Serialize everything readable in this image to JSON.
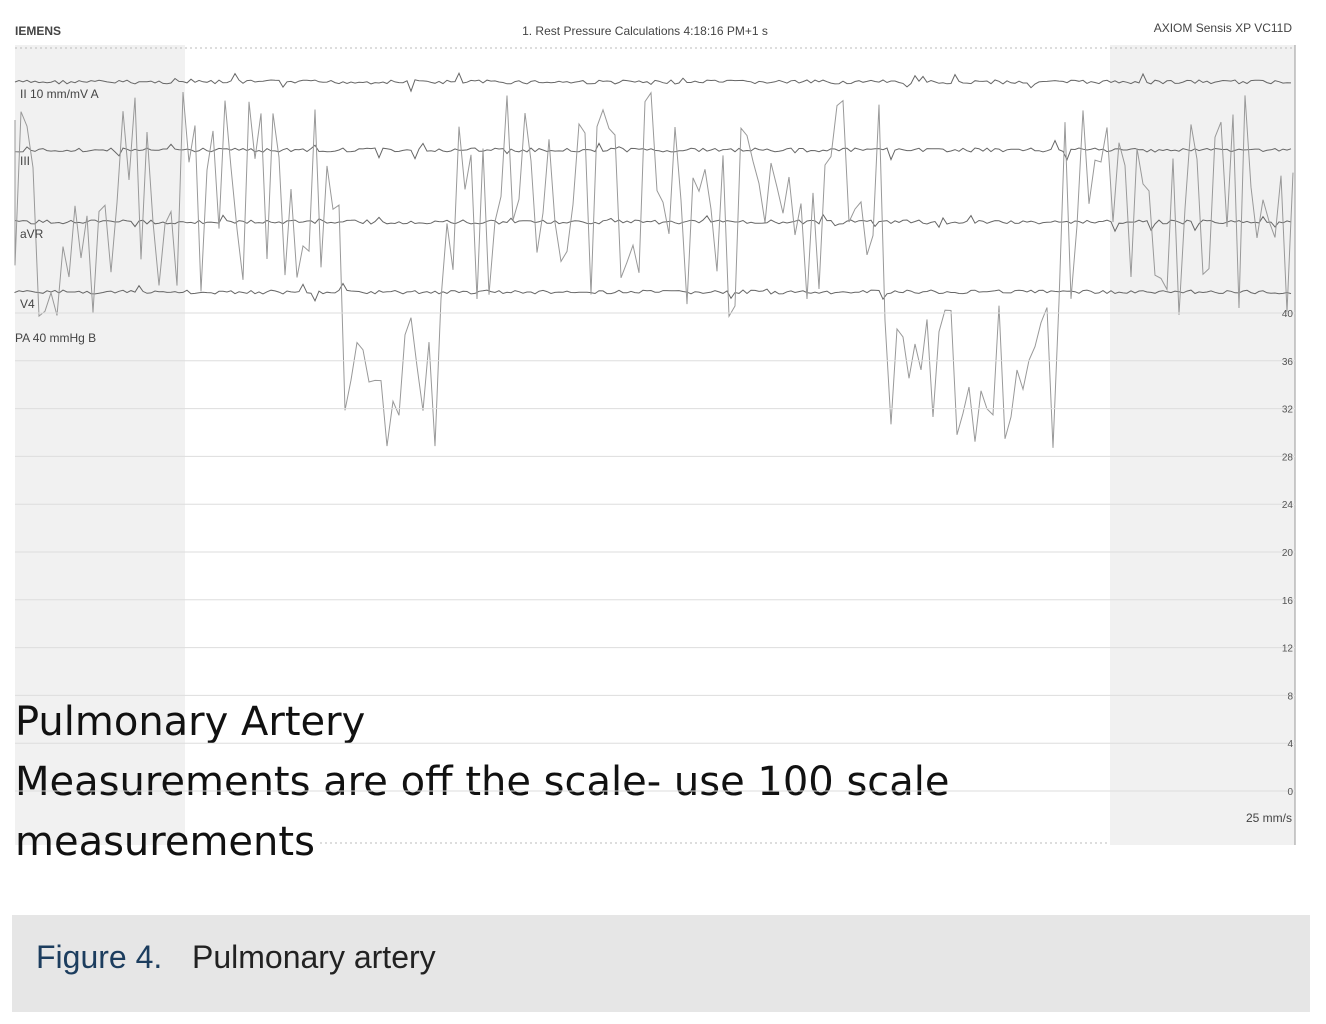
{
  "header": {
    "brand": "IEMENS",
    "study": "1. Rest Pressure Calculations 4:18:16 PM+1 s",
    "system": "AXIOM Sensis XP VC11D"
  },
  "leads": [
    "II 10 mm/mV A",
    "III",
    "aVR",
    "V4"
  ],
  "pressure_channel": "PA 40 mmHg B",
  "scale": {
    "ticks": [
      40,
      36,
      32,
      28,
      24,
      20,
      16,
      12,
      8,
      4,
      0
    ],
    "speed": "25 mm/s"
  },
  "overlay": [
    "Pulmonary Artery",
    "Measurements are off the scale- use 100 scale",
    "measurements"
  ],
  "caption": {
    "label": "Figure 4.",
    "text": "Pulmonary artery"
  }
}
